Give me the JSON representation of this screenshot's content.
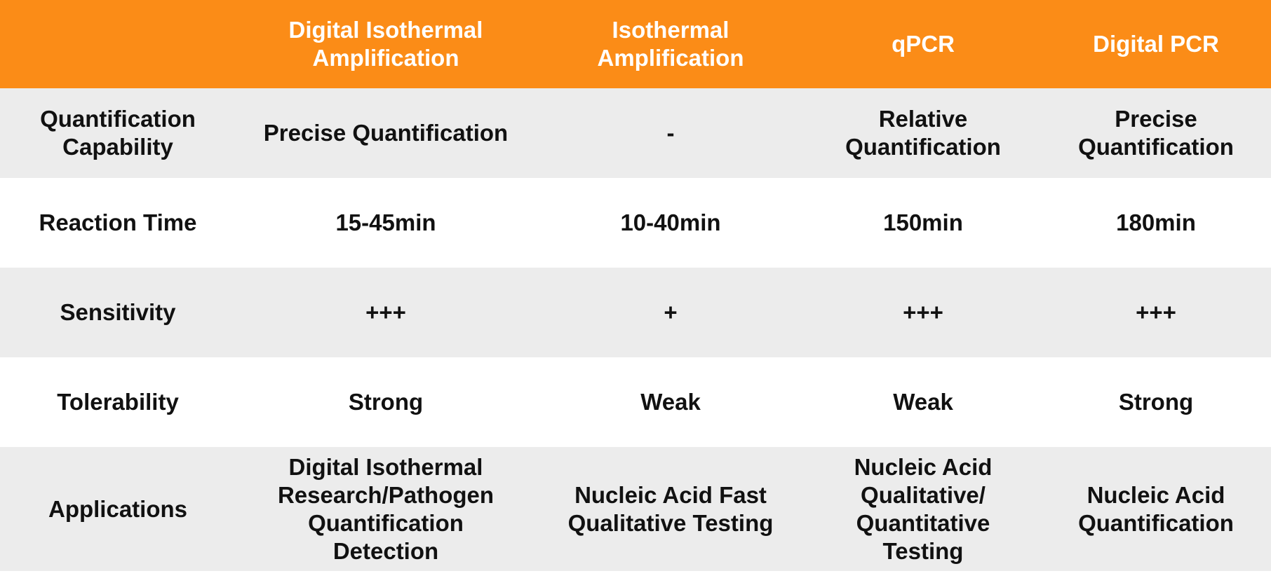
{
  "colors": {
    "header_bg": "#fb8c17",
    "header_text": "#ffffff",
    "row_shaded": "#ececec",
    "row_white": "#ffffff",
    "body_text": "#111111"
  },
  "table": {
    "headers": [
      {
        "lines": []
      },
      {
        "lines": [
          "Digital Isothermal",
          "Amplification"
        ]
      },
      {
        "lines": [
          "Isothermal",
          "Amplification"
        ]
      },
      {
        "lines": [
          "qPCR"
        ]
      },
      {
        "lines": [
          "Digital PCR"
        ]
      }
    ],
    "rows": [
      {
        "label": [
          "Quantification",
          "Capability"
        ],
        "cells": [
          [
            "Precise Quantification"
          ],
          [
            "-"
          ],
          [
            "Relative",
            "Quantification"
          ],
          [
            "Precise",
            "Quantification"
          ]
        ]
      },
      {
        "label": [
          "Reaction Time"
        ],
        "cells": [
          [
            "15-45min"
          ],
          [
            "10-40min"
          ],
          [
            "150min"
          ],
          [
            "180min"
          ]
        ]
      },
      {
        "label": [
          "Sensitivity"
        ],
        "cells": [
          [
            "+++"
          ],
          [
            "+"
          ],
          [
            "+++"
          ],
          [
            "+++"
          ]
        ]
      },
      {
        "label": [
          "Tolerability"
        ],
        "cells": [
          [
            "Strong"
          ],
          [
            "Weak"
          ],
          [
            "Weak"
          ],
          [
            "Strong"
          ]
        ]
      },
      {
        "label": [
          "Applications"
        ],
        "cells": [
          [
            "Digital Isothermal",
            "Research/Pathogen",
            "Quantification",
            "Detection"
          ],
          [
            "Nucleic Acid Fast",
            "Qualitative Testing"
          ],
          [
            "Nucleic Acid",
            "Qualitative/",
            "Quantitative",
            "Testing"
          ],
          [
            "Nucleic Acid",
            "Quantification"
          ]
        ]
      }
    ]
  }
}
